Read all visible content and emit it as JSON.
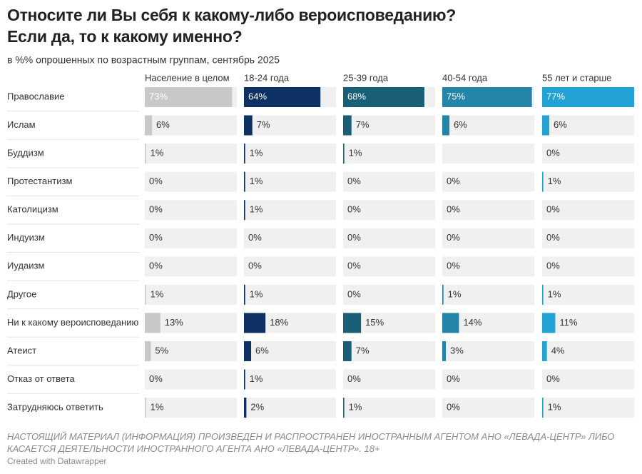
{
  "chart_data": {
    "type": "bar",
    "title": "Относите ли Вы себя к какому-либо вероисповеданию? Если да, то к какому именно?",
    "subtitle": "в %% опрошенных по возрастным группам, сентябрь 2025",
    "note": "НАСТОЯЩИЙ МАТЕРИАЛ (ИНФОРМАЦИЯ) ПРОИЗВЕДЕН И РАСПРОСТРАНЕН ИНОСТРАННЫМ АГЕНТОМ АНО «ЛЕВАДА-ЦЕНТР» ЛИБО КАСАЕТСЯ ДЕЯТЕЛЬНОСТИ ИНОСТРАННОГО АГЕНТА АНО «ЛЕВАДА-ЦЕНТР». 18+",
    "credit": "Created with Datawrapper",
    "categories": [
      "Православие",
      "Ислам",
      "Буддизм",
      "Протестантизм",
      "Католицизм",
      "Индуизм",
      "Иудаизм",
      "Другое",
      "Ни к какому вероисповеданию",
      "Атеист",
      "Отказ от ответа",
      "Затрудняюсь ответить"
    ],
    "xlim": [
      0,
      77
    ],
    "series": [
      {
        "name": "Население в целом",
        "color": "#c8c8c8",
        "values": [
          73,
          6,
          1,
          0,
          0,
          0,
          0,
          1,
          13,
          5,
          0,
          1
        ],
        "value_labels": [
          "73%",
          "6%",
          "1%",
          "0%",
          "0%",
          "0%",
          "0%",
          "1%",
          "13%",
          "5%",
          "0%",
          "1%"
        ]
      },
      {
        "name": "18-24 года",
        "color": "#0d3163",
        "values": [
          64,
          7,
          1,
          1,
          1,
          0,
          0,
          1,
          18,
          6,
          1,
          2
        ],
        "value_labels": [
          "64%",
          "7%",
          "1%",
          "1%",
          "1%",
          "0%",
          "0%",
          "1%",
          "18%",
          "6%",
          "1%",
          "2%"
        ]
      },
      {
        "name": "25-39 года",
        "color": "#1a5f78",
        "values": [
          68,
          7,
          1,
          0,
          0,
          0,
          0,
          0,
          15,
          7,
          0,
          1
        ],
        "value_labels": [
          "68%",
          "7%",
          "1%",
          "0%",
          "0%",
          "0%",
          "0%",
          "0%",
          "15%",
          "7%",
          "0%",
          "1%"
        ]
      },
      {
        "name": "40-54 года",
        "color": "#2585a8",
        "values": [
          75,
          6,
          null,
          0,
          0,
          0,
          0,
          1,
          14,
          3,
          0,
          0
        ],
        "value_labels": [
          "75%",
          "6%",
          null,
          "0%",
          "0%",
          "0%",
          "0%",
          "1%",
          "14%",
          "3%",
          "0%",
          "0%"
        ]
      },
      {
        "name": "55 лет и старше",
        "color": "#22a3d3",
        "values": [
          77,
          6,
          0,
          1,
          0,
          0,
          0,
          1,
          11,
          4,
          0,
          1
        ],
        "value_labels": [
          "77%",
          "6%",
          "0%",
          "1%",
          "0%",
          "0%",
          "0%",
          "1%",
          "11%",
          "4%",
          "0%",
          "1%"
        ]
      }
    ]
  }
}
